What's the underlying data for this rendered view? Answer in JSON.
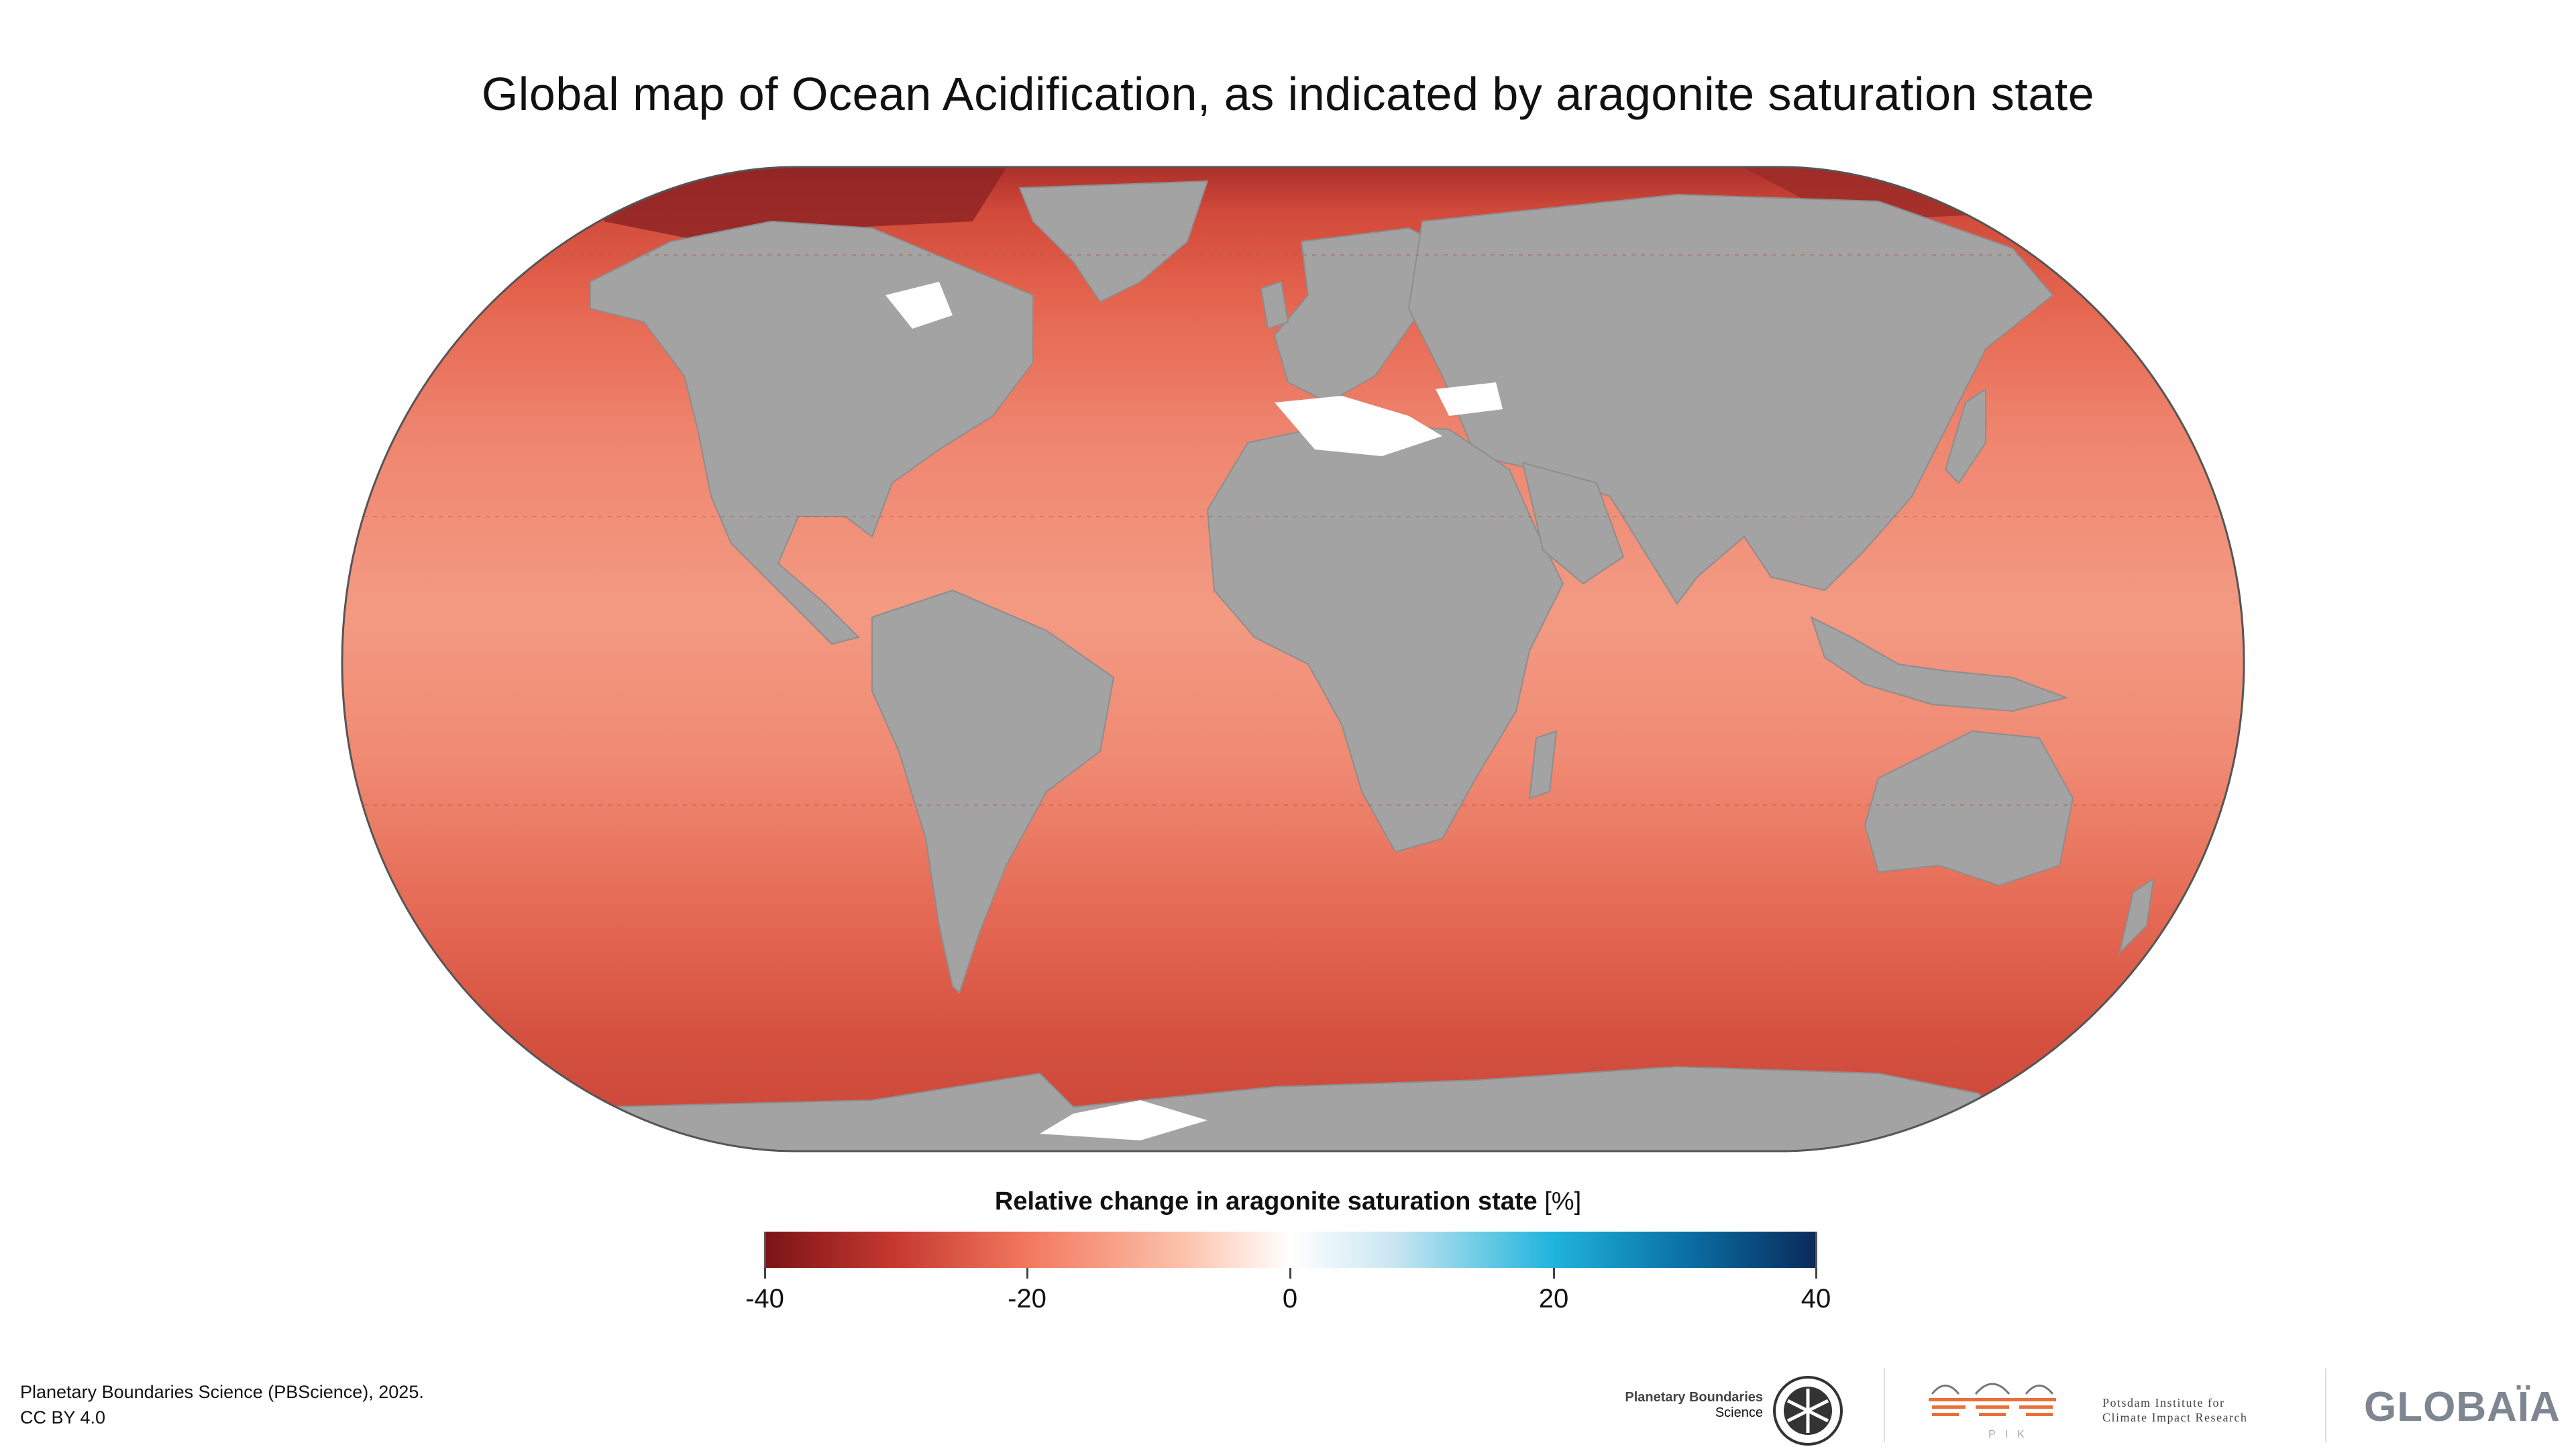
{
  "title": "Global map of Ocean Acidification, as indicated by aragonite saturation state",
  "legend": {
    "title": "Relative change in aragonite saturation state",
    "unit": "[%]",
    "ticks": [
      "-40",
      "-20",
      "0",
      "20",
      "40"
    ],
    "range": [
      -40,
      40
    ]
  },
  "colors": {
    "strong_decrease": "#7c1416",
    "moderate_decrease": "#f2785e",
    "neutral": "#ffffff",
    "moderate_increase": "#1fb4dc",
    "strong_increase": "#0b2a5a",
    "land": "#a3a3a3",
    "ocean_typical": "#ef8670"
  },
  "credits": {
    "line1": "Planetary Boundaries Science (PBScience), 2025.",
    "line2": "CC BY 4.0"
  },
  "logos": {
    "pb_line1": "Planetary Boundaries",
    "pb_line2": "Science",
    "pik_line1": "Potsdam Institute for",
    "pik_line2": "Climate Impact Research",
    "pik_short": "PIK",
    "globaia": "GLOBAÏA"
  }
}
